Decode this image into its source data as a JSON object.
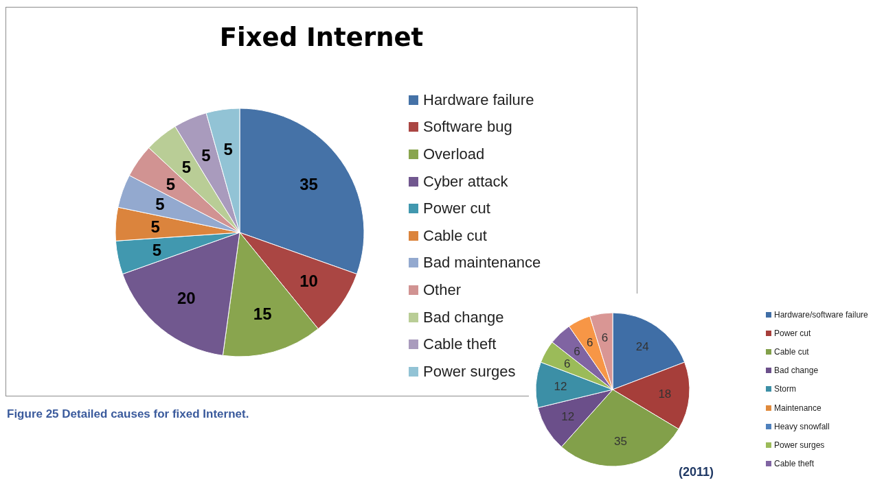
{
  "chart_data": [
    {
      "type": "pie",
      "title": "Fixed Internet",
      "categories": [
        "Hardware failure",
        "Software bug",
        "Overload",
        "Cyber attack",
        "Power cut",
        "Cable cut",
        "Bad maintenance",
        "Other",
        "Bad change",
        "Cable theft",
        "Power surges"
      ],
      "values": [
        35,
        10,
        15,
        20,
        5,
        5,
        5,
        5,
        5,
        5,
        5
      ],
      "colors": [
        "#4572a7",
        "#aa4643",
        "#89a54e",
        "#71588f",
        "#4198af",
        "#db843d",
        "#93a9cf",
        "#d19392",
        "#b9cd96",
        "#a99bbd",
        "#92c3d5"
      ],
      "data_labels": true,
      "legend": "right",
      "annotations": [
        "Figure 25 Detailed causes for fixed Internet."
      ]
    },
    {
      "type": "pie",
      "categories": [
        "Hardware/software failure",
        "Power cut",
        "Cable cut",
        "Bad change",
        "Storm",
        "Maintenance",
        "Heavy snowfall",
        "Power surges",
        "Cable theft",
        null,
        null
      ],
      "values": [
        24,
        18,
        35,
        12,
        12,
        0,
        0,
        6,
        6,
        6,
        6
      ],
      "colors": [
        "#3f6ea6",
        "#a63e3a",
        "#82a04a",
        "#6b4f8a",
        "#3c8fa6",
        "#e08a3c",
        "#4f81bd",
        "#9bbb59",
        "#8064a2",
        "#f79646",
        "#d99694"
      ],
      "data_labels": true,
      "legend": "right",
      "annotations": [
        "(2011)"
      ]
    }
  ]
}
